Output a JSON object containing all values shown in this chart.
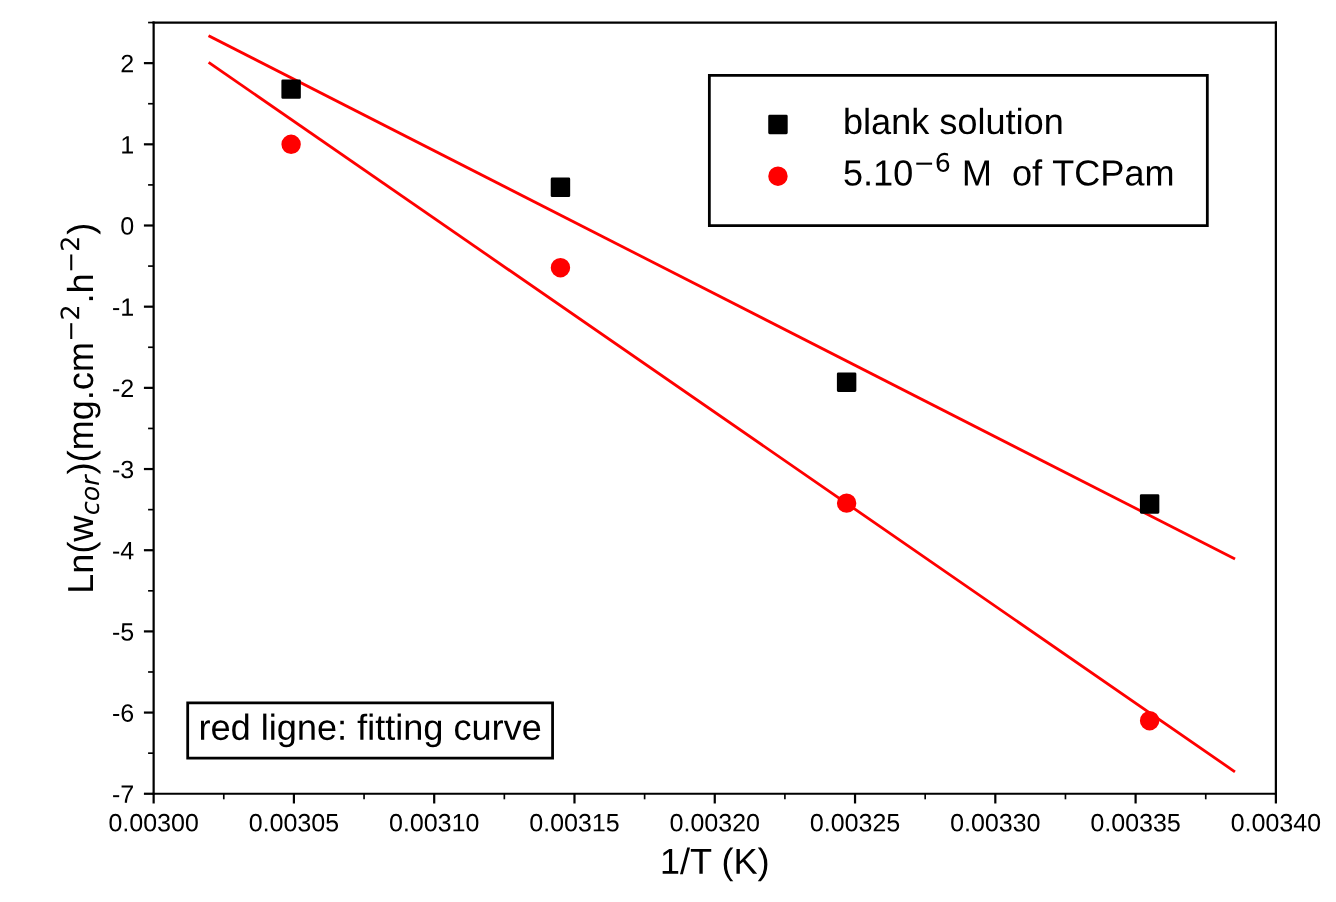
{
  "chart_data": {
    "type": "scatter",
    "xlabel": "1/T (K)",
    "ylabel": "Ln(w$_{cor}$)(mg.cm$^{−2}$.h$^{−2}$)",
    "xlim": [
      0.003,
      0.0034
    ],
    "ylim": [
      -7,
      2.5
    ],
    "xticks": [
      {
        "value": 0.003,
        "label": "0.00300"
      },
      {
        "value": 0.00305,
        "label": "0.00305"
      },
      {
        "value": 0.0031,
        "label": "0.00310"
      },
      {
        "value": 0.00315,
        "label": "0.00315"
      },
      {
        "value": 0.0032,
        "label": "0.00320"
      },
      {
        "value": 0.00325,
        "label": "0.00325"
      },
      {
        "value": 0.0033,
        "label": "0.00330"
      },
      {
        "value": 0.00335,
        "label": "0.00335"
      },
      {
        "value": 0.0034,
        "label": "0.00340"
      }
    ],
    "yticks": [
      -7,
      -6,
      -5,
      -4,
      -3,
      -2,
      -1,
      0,
      1,
      2
    ],
    "grid": false,
    "legend": "top right",
    "annotations": [
      "red ligne: fitting curve"
    ],
    "series": [
      {
        "name": "blank solution",
        "marker": "square",
        "color": "#000000",
        "x": [
          0.003049,
          0.003145,
          0.003247,
          0.003355
        ],
        "values": [
          1.68,
          0.47,
          -1.93,
          -3.43
        ]
      },
      {
        "name": "5.10$^{−6}$ M  of TCPam",
        "marker": "circle",
        "color": "#ff0000",
        "x": [
          0.003049,
          0.003145,
          0.003247,
          0.003355
        ],
        "values": [
          1.0,
          -0.52,
          -3.42,
          -6.1
        ]
      },
      {
        "type": "line",
        "color": "#ff0000",
        "line_style": "solid",
        "marker": "none",
        "x": [
          0.00302,
          0.003385
        ],
        "values": [
          2.33,
          -4.1
        ]
      },
      {
        "type": "line",
        "color": "#ff0000",
        "line_style": "solid",
        "marker": "none",
        "x": [
          0.00302,
          0.003385
        ],
        "values": [
          2.0,
          -6.72
        ]
      }
    ]
  }
}
